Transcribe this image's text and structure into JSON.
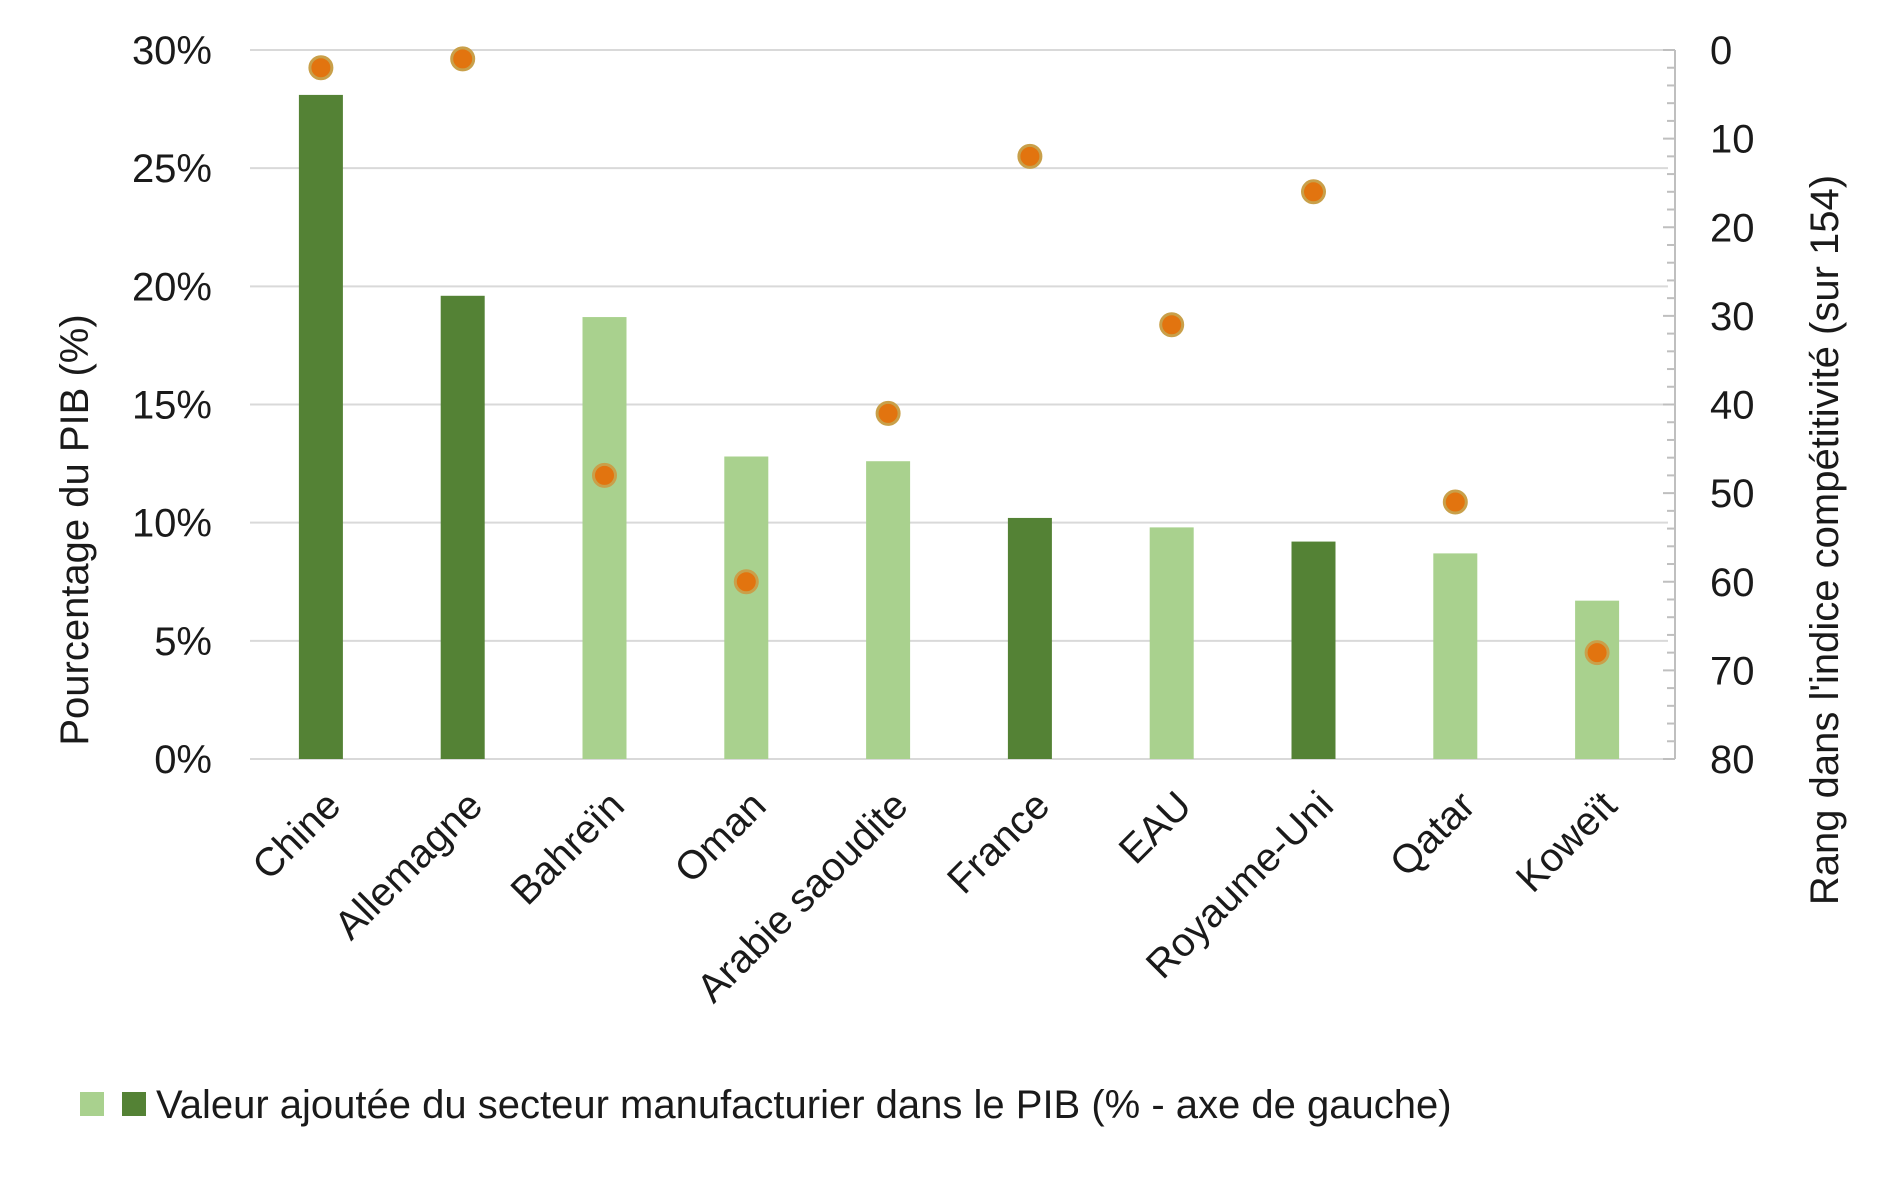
{
  "chart_data": {
    "type": "bar",
    "categories": [
      "Chine",
      "Allemagne",
      "Bahreïn",
      "Oman",
      "Arabie saoudite",
      "France",
      "EAU",
      "Royaume-Uni",
      "Qatar",
      "Koweït"
    ],
    "series": [
      {
        "name": "Valeur ajoutée du secteur manufacturier dans le PIB (% - axe de gauche)",
        "axis": "left",
        "type": "bar",
        "values": [
          28.1,
          19.6,
          18.7,
          12.8,
          12.6,
          10.2,
          9.8,
          9.2,
          8.7,
          6.7
        ],
        "group": [
          "non-gcc",
          "non-gcc",
          "gcc",
          "gcc",
          "gcc",
          "non-gcc",
          "gcc",
          "non-gcc",
          "gcc",
          "gcc"
        ]
      },
      {
        "axis": "right",
        "type": "scatter",
        "values": [
          2,
          1,
          48,
          60,
          41,
          12,
          31,
          16,
          51,
          68
        ]
      }
    ],
    "left_axis": {
      "label": "Pourcentage du PIB (%)",
      "ylim": [
        0,
        30
      ],
      "ticks": [
        "0%",
        "5%",
        "10%",
        "15%",
        "20%",
        "25%",
        "30%"
      ],
      "tick_values": [
        0,
        5,
        10,
        15,
        20,
        25,
        30
      ]
    },
    "right_axis": {
      "label": "Rang dans l'indice compétitivité  (sur 154)",
      "ylim": [
        0,
        80
      ],
      "inverted": true,
      "ticks": [
        "0",
        "10",
        "20",
        "30",
        "40",
        "50",
        "60",
        "70",
        "80"
      ],
      "tick_values": [
        0,
        10,
        20,
        30,
        40,
        50,
        60,
        70,
        80
      ]
    },
    "grid": true,
    "legend_position": "bottom-left",
    "colors": {
      "gcc_bar": "#a9d18e",
      "non_gcc_bar": "#548235",
      "dot_fill": "#e2740f",
      "dot_stroke": "#c9a04a",
      "grid": "#d9d9d9",
      "axis": "#bfbfbf"
    }
  }
}
